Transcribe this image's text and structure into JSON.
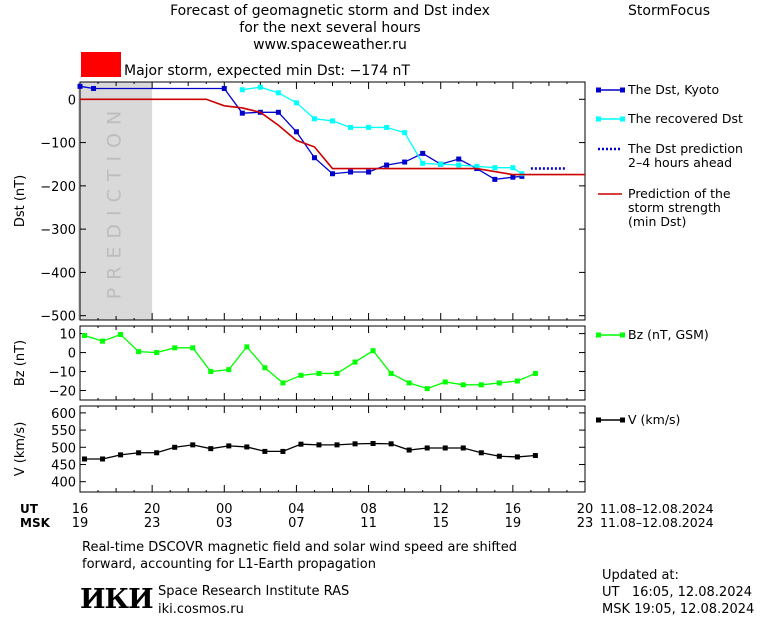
{
  "header": {
    "title_line1": "Forecast of geomagnetic storm and Dst index",
    "title_line2": "for the next several hours",
    "url": "www.spaceweather.ru",
    "brand": "StormFocus",
    "storm_label": "Major storm, expected min Dst: −174 nT",
    "storm_color": "#ff0000"
  },
  "footer": {
    "note_line1": "Real-time DSCOVR magnetic field and solar wind speed are shifted",
    "note_line2": "forward, accounting for L1-Earth propagation",
    "institute_logo": "ИКИ",
    "institute_name": "Space Research Institute RAS",
    "institute_url": "iki.cosmos.ru",
    "updated_label": "Updated at:",
    "updated_ut": "UT   16:05, 12.08.2024",
    "updated_msk": "MSK 19:05, 12.08.2024"
  },
  "chart_data": [
    {
      "type": "line",
      "panel": "dst",
      "ylabel": "Dst (nT)",
      "ylim": [
        -510,
        40
      ],
      "yticks": [
        "0",
        "−100",
        "−200",
        "−300",
        "−400",
        "−500"
      ],
      "prediction_band_label": "PREDICTION",
      "prediction_band_x": [
        16,
        20
      ],
      "series": [
        {
          "name": "The Dst, Kyoto",
          "color": "#0000cc",
          "style": "solid-marker",
          "x": [
            16,
            16.75,
            24,
            25,
            26,
            27,
            28,
            29,
            30,
            31,
            32,
            33,
            34,
            35,
            36,
            37,
            38,
            39,
            40,
            40.5
          ],
          "y": [
            30,
            25,
            25,
            -32,
            -30,
            -30,
            -75,
            -135,
            -172,
            -168,
            -168,
            -152,
            -145,
            -125,
            -150,
            -138,
            -160,
            -185,
            -180,
            -178
          ]
        },
        {
          "name": "The recovered Dst",
          "color": "#00ffff",
          "style": "solid-marker",
          "x": [
            25,
            26,
            27,
            28,
            29,
            30,
            31,
            32,
            33,
            34,
            35,
            36,
            37,
            38,
            39,
            40,
            40.5
          ],
          "y": [
            22,
            28,
            15,
            -8,
            -45,
            -50,
            -65,
            -65,
            -65,
            -77,
            -148,
            -150,
            -152,
            -155,
            -158,
            -158,
            -172
          ]
        },
        {
          "name": "The Dst prediction 2–4 hours ahead",
          "color": "#0000cc",
          "style": "dotted",
          "x": [
            41,
            43
          ],
          "y": [
            -160,
            -160
          ]
        },
        {
          "name": "Prediction of the storm strength (min Dst)",
          "color": "#cc0000",
          "style": "solid",
          "x": [
            16,
            22,
            23,
            24,
            25,
            26,
            27,
            28,
            29,
            30,
            32,
            34,
            36,
            38,
            40,
            42,
            44
          ],
          "y": [
            0,
            0,
            0,
            -15,
            -20,
            -30,
            -60,
            -95,
            -110,
            -160,
            -160,
            -160,
            -160,
            -160,
            -174,
            -174,
            -174
          ]
        }
      ]
    },
    {
      "type": "line",
      "panel": "bz",
      "ylabel": "Bz (nT)",
      "ylim": [
        -25,
        14
      ],
      "yticks": [
        "10",
        "0",
        "−10",
        "−20"
      ],
      "series": [
        {
          "name": "Bz (nT, GSM)",
          "color": "#00ff00",
          "x": [
            16.25,
            17.25,
            18.25,
            19.25,
            20.25,
            21.25,
            22.25,
            23.25,
            24.25,
            25.25,
            26.25,
            27.25,
            28.25,
            29.25,
            30.25,
            31.25,
            32.25,
            33.25,
            34.25,
            35.25,
            36.25,
            37.25,
            38.25,
            39.25,
            40.25,
            41.25
          ],
          "y": [
            9,
            6,
            9.5,
            0.5,
            0,
            2.5,
            2.5,
            -10,
            -9,
            3,
            -8,
            -16,
            -12,
            -11,
            -11,
            -5,
            1,
            -11,
            -16,
            -19,
            -15.5,
            -17,
            -17,
            -16,
            -15,
            -11
          ]
        }
      ]
    },
    {
      "type": "line",
      "panel": "v",
      "ylabel": "V (km/s)",
      "ylim": [
        370,
        620
      ],
      "yticks": [
        "600",
        "550",
        "500",
        "450",
        "400"
      ],
      "series": [
        {
          "name": "V (km/s)",
          "color": "#000000",
          "x": [
            16.25,
            17.25,
            18.25,
            19.25,
            20.25,
            21.25,
            22.25,
            23.25,
            24.25,
            25.25,
            26.25,
            27.25,
            28.25,
            29.25,
            30.25,
            31.25,
            32.25,
            33.25,
            34.25,
            35.25,
            36.25,
            37.25,
            38.25,
            39.25,
            40.25,
            41.25
          ],
          "y": [
            466,
            466,
            478,
            484,
            484,
            500,
            507,
            496,
            504,
            501,
            488,
            488,
            509,
            507,
            507,
            510,
            511,
            510,
            492,
            498,
            498,
            498,
            484,
            474,
            472,
            476
          ]
        }
      ]
    }
  ],
  "xaxis": {
    "ut_label": "UT",
    "msk_label": "MSK",
    "ut_ticks": [
      "16",
      "20",
      "00",
      "04",
      "08",
      "12",
      "16",
      "20"
    ],
    "msk_ticks": [
      "19",
      "23",
      "03",
      "07",
      "11",
      "15",
      "19",
      "23"
    ],
    "tick_hours": [
      16,
      20,
      24,
      28,
      32,
      36,
      40,
      44
    ],
    "xlim": [
      16,
      44
    ],
    "date_range_ut": "11.08–12.08.2024",
    "date_range_msk": "11.08–12.08.2024"
  }
}
